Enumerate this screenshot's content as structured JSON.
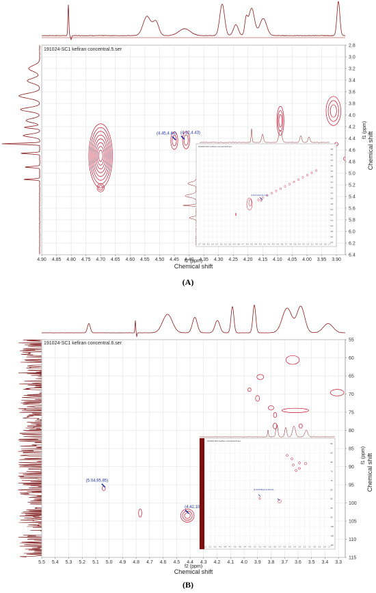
{
  "chart_data": [
    {
      "panel": "(A)",
      "type": "heatmap",
      "title": "191024-SC1 kefiran concentral.5.ser",
      "xlabel": "f2 (ppm)",
      "xlabel2": "Chemical shift",
      "ylabel": "f1 (ppm)",
      "ylabel2": "Chemical shift",
      "xlim": [
        4.9,
        3.87
      ],
      "ylim": [
        2.8,
        6.4
      ],
      "x_ticks": [
        "4.90",
        "4.85",
        "4.80",
        "4.75",
        "4.70",
        "4.65",
        "4.60",
        "4.55",
        "4.50",
        "4.45",
        "4.40",
        "4.35",
        "4.30",
        "4.25",
        "4.20",
        "4.15",
        "4.10",
        "4.05",
        "4.00",
        "3.95",
        "3.90"
      ],
      "y_ticks": [
        "2.8",
        "3.0",
        "3.2",
        "3.4",
        "3.6",
        "3.8",
        "4.0",
        "4.2",
        "4.4",
        "4.6",
        "4.8",
        "5.0",
        "5.2",
        "5.4",
        "5.6",
        "5.8",
        "6.0",
        "6.2",
        "6.4"
      ],
      "cross_peaks": [
        {
          "x": 4.7,
          "y": 4.7,
          "rings": 8,
          "rx": 0.04,
          "ry": 0.55
        },
        {
          "x": 4.7,
          "y": 5.25,
          "rings": 2,
          "rx": 0.012,
          "ry": 0.07
        },
        {
          "x": 4.45,
          "y": 4.44,
          "rings": 2,
          "rx": 0.012,
          "ry": 0.15
        },
        {
          "x": 4.41,
          "y": 4.43,
          "rings": 2,
          "rx": 0.012,
          "ry": 0.15
        },
        {
          "x": 4.09,
          "y": 4.1,
          "rings": 3,
          "rx": 0.012,
          "ry": 0.25
        },
        {
          "x": 3.91,
          "y": 3.93,
          "rings": 3,
          "rx": 0.025,
          "ry": 0.25
        },
        {
          "x": 3.9,
          "y": 4.5,
          "rings": 1,
          "rx": 0.006,
          "ry": 0.03
        },
        {
          "x": 3.87,
          "y": 4.75,
          "rings": 1,
          "rx": 0.006,
          "ry": 0.03
        }
      ],
      "annotations": [
        {
          "x": 4.45,
          "y": 4.44,
          "label": "(4.45,4.44)"
        },
        {
          "x": 4.42,
          "y": 4.43,
          "label": "(4.42,4.43)"
        }
      ],
      "inset": {
        "title": "191024-SC1 kefiran concentral.5.ser",
        "x_ticks": [
          "5.7",
          "5.6",
          "5.5",
          "5.4",
          "5.3",
          "5.2",
          "5.1",
          "5.0",
          "4.9",
          "4.8",
          "4.7",
          "4.6",
          "4.5",
          "4.4",
          "4.3",
          "4.2",
          "4.1",
          "4.0",
          "3.9",
          "3.8",
          "3.7",
          "3.6",
          "3.5",
          "3.4",
          "3.3",
          "3.2",
          "3.1",
          "3.0",
          "2.9",
          "2.8",
          "2.7"
        ],
        "y_ticks": [
          "2.8",
          "3.0",
          "3.2",
          "3.4",
          "3.6",
          "3.8",
          "4.0",
          "4.2",
          "4.4",
          "4.6",
          "4.8",
          "5.0",
          "5.2",
          "5.4",
          "5.6",
          "5.8",
          "6.0",
          "6.2"
        ],
        "annot": "(4.45,4.44)(4.42,4.43)"
      }
    },
    {
      "panel": "(B)",
      "type": "heatmap",
      "title": "191024-SC1 kefiran concentral.6.ser",
      "xlabel": "f2 (ppm)",
      "xlabel2": "Chemical shift",
      "ylabel": "f1 (ppm)",
      "ylabel2": "Chemical shift",
      "xlim": [
        5.5,
        3.25
      ],
      "ylim": [
        55,
        115
      ],
      "x_ticks": [
        "5.5",
        "5.4",
        "5.3",
        "5.2",
        "5.1",
        "5.0",
        "4.9",
        "4.8",
        "4.7",
        "4.6",
        "4.5",
        "4.4",
        "4.3",
        "4.2",
        "4.1",
        "4.0",
        "3.9",
        "3.8",
        "3.7",
        "3.6",
        "3.5",
        "3.4",
        "3.3"
      ],
      "y_ticks": [
        "55",
        "60",
        "65",
        "70",
        "75",
        "80",
        "85",
        "90",
        "95",
        "100",
        "105",
        "110",
        "115"
      ],
      "cross_peaks": [
        {
          "x": 5.04,
          "y": 96.0,
          "rings": 1,
          "rx": 0.012,
          "ry": 0.6
        },
        {
          "x": 4.77,
          "y": 102.8,
          "rings": 1,
          "rx": 0.012,
          "ry": 1.1
        },
        {
          "x": 4.42,
          "y": 103.5,
          "rings": 3,
          "rx": 0.05,
          "ry": 1.8
        },
        {
          "x": 3.88,
          "y": 65.3,
          "rings": 1,
          "rx": 0.025,
          "ry": 0.7
        },
        {
          "x": 3.64,
          "y": 60.6,
          "rings": 1,
          "rx": 0.05,
          "ry": 1.2
        },
        {
          "x": 3.96,
          "y": 68.8,
          "rings": 1,
          "rx": 0.012,
          "ry": 0.5
        },
        {
          "x": 3.9,
          "y": 71.2,
          "rings": 1,
          "rx": 0.015,
          "ry": 0.8
        },
        {
          "x": 3.8,
          "y": 73.8,
          "rings": 1,
          "rx": 0.02,
          "ry": 0.6
        },
        {
          "x": 3.62,
          "y": 74.5,
          "rings": 1,
          "rx": 0.1,
          "ry": 0.6
        },
        {
          "x": 3.31,
          "y": 69.6,
          "rings": 1,
          "rx": 0.05,
          "ry": 0.9
        },
        {
          "x": 3.77,
          "y": 75.8,
          "rings": 1,
          "rx": 0.012,
          "ry": 0.7
        },
        {
          "x": 3.77,
          "y": 78.8,
          "rings": 1,
          "rx": 0.015,
          "ry": 0.8
        },
        {
          "x": 3.58,
          "y": 78.8,
          "rings": 1,
          "rx": 0.012,
          "ry": 0.6
        }
      ],
      "annotations": [
        {
          "x": 5.04,
          "y": 95.85,
          "label": "(5.04,95.85)"
        },
        {
          "x": 4.42,
          "y": 103.1,
          "label": "(4.42,103.10)"
        }
      ],
      "inset": {
        "title": "191024-SC1 kefiran concentral.6.ser",
        "x_ticks": [
          "5.2",
          "5.1",
          "5.0",
          "4.9",
          "4.8",
          "4.7",
          "4.6",
          "4.5",
          "4.4",
          "4.3",
          "4.2",
          "4.1",
          "4.0",
          "3.9",
          "3.8",
          "3.7",
          "3.6",
          "3.5",
          "3.4",
          "3.3",
          "3.2",
          "3.1",
          "3.0",
          "2.9",
          "2.8",
          "2.7"
        ],
        "y_ticks": [
          "55",
          "60",
          "65",
          "70",
          "75",
          "80",
          "85",
          "90",
          "95",
          "100",
          "105",
          "110"
        ],
        "annot": "(5.04,95.85)(4.42,103.10)"
      }
    }
  ]
}
